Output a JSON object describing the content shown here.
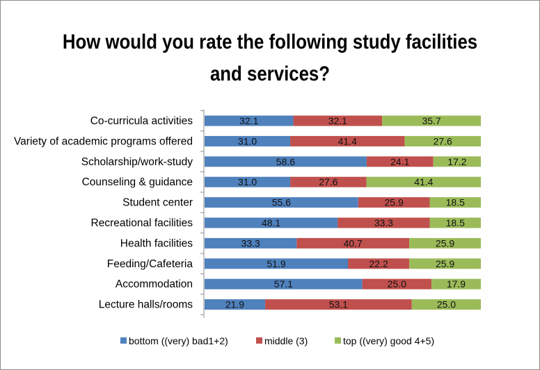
{
  "chart_data": {
    "type": "bar",
    "orientation": "horizontal",
    "stacked": "percent",
    "title": "How would you rate the following study facilities and services?",
    "title_lines": [
      "How would you rate the following study facilities",
      "and services?"
    ],
    "categories": [
      "Co-curricula activities",
      "Variety of academic programs offered",
      "Scholarship/work-study",
      "Counseling & guidance",
      "Student center",
      "Recreational facilities",
      "Health facilities",
      "Feeding/Cafeteria",
      "Accommodation",
      "Lecture halls/rooms"
    ],
    "series": [
      {
        "name": "bottom ((very) bad1+2)",
        "color": "#4f81bd",
        "values": [
          32.1,
          31.0,
          58.6,
          31.0,
          55.6,
          48.1,
          33.3,
          51.9,
          57.1,
          21.9
        ]
      },
      {
        "name": "middle (3)",
        "color": "#c0504d",
        "values": [
          32.1,
          41.4,
          24.1,
          27.6,
          25.9,
          33.3,
          40.7,
          22.2,
          25.0,
          53.1
        ]
      },
      {
        "name": "top ((very) good 4+5)",
        "color": "#9bbb59",
        "values": [
          35.7,
          27.6,
          17.2,
          41.4,
          18.5,
          18.5,
          25.9,
          25.9,
          17.9,
          25.0
        ]
      }
    ],
    "data_labels": true,
    "gridlines": false,
    "legend_position": "bottom"
  }
}
